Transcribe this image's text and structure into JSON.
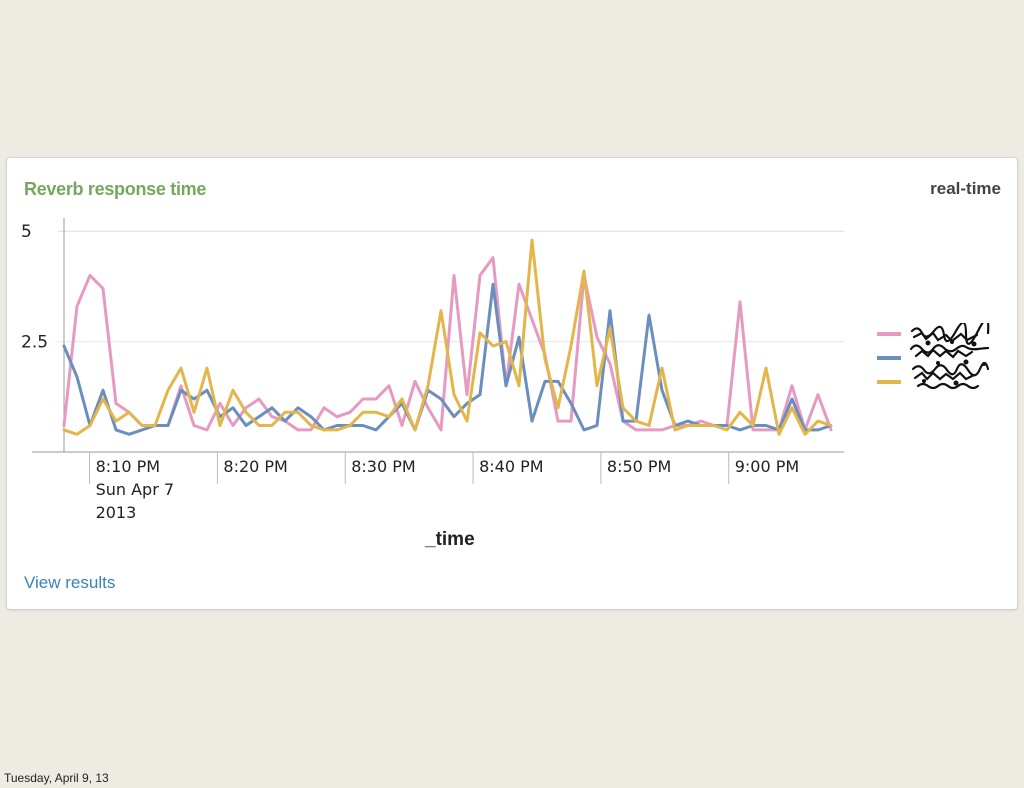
{
  "panel": {
    "title": "Reverb response time",
    "mode_label": "real-time",
    "view_link": "View results"
  },
  "footer": {
    "date": "Tuesday, April 9, 13"
  },
  "colors": {
    "pink": "#e69ac2",
    "blue": "#6a8fbf",
    "gold": "#e2b64a",
    "title_green": "#75a85f",
    "link_blue": "#3b83b5"
  },
  "chart_data": {
    "type": "line",
    "title": "Reverb response time",
    "xlabel": "_time",
    "ylabel": "",
    "ylim": [
      0,
      5.3
    ],
    "y_ticks": [
      2.5,
      5
    ],
    "y_tick_labels": [
      "2.5",
      "5"
    ],
    "x_ticks": [
      "8:10 PM",
      "8:20 PM",
      "8:30 PM",
      "8:40 PM",
      "8:50 PM",
      "9:00 PM"
    ],
    "x_tick_sublabels": [
      "Sun Apr 7",
      "2013"
    ],
    "x_range_minutes": [
      8.0,
      68.0
    ],
    "series": [
      {
        "name": "",
        "color": "#e69ac2",
        "values": [
          0.6,
          3.3,
          4.0,
          3.7,
          1.1,
          0.9,
          0.6,
          0.6,
          0.6,
          1.5,
          0.6,
          0.5,
          1.1,
          0.6,
          1.0,
          1.2,
          0.8,
          0.7,
          0.5,
          0.5,
          1.0,
          0.8,
          0.9,
          1.2,
          1.2,
          1.5,
          0.6,
          1.6,
          1.0,
          0.5,
          4.0,
          1.3,
          4.0,
          4.4,
          1.5,
          3.8,
          3.0,
          2.2,
          0.7,
          0.7,
          4.0,
          2.6,
          2.0,
          0.7,
          0.5,
          0.5,
          0.5,
          0.6,
          0.6,
          0.7,
          0.6,
          0.6,
          3.4,
          0.5,
          0.5,
          0.5,
          1.5,
          0.5,
          1.3,
          0.5
        ]
      },
      {
        "name": "",
        "color": "#6a8fbf",
        "values": [
          2.4,
          1.7,
          0.6,
          1.4,
          0.5,
          0.4,
          0.5,
          0.6,
          0.6,
          1.4,
          1.2,
          1.4,
          0.8,
          1.0,
          0.6,
          0.8,
          1.0,
          0.7,
          1.0,
          0.8,
          0.5,
          0.6,
          0.6,
          0.6,
          0.5,
          0.8,
          1.1,
          0.5,
          1.4,
          1.2,
          0.8,
          1.1,
          1.3,
          3.8,
          1.5,
          2.6,
          0.7,
          1.6,
          1.6,
          1.1,
          0.5,
          0.6,
          3.2,
          0.7,
          0.7,
          3.1,
          1.4,
          0.6,
          0.7,
          0.6,
          0.6,
          0.6,
          0.5,
          0.6,
          0.6,
          0.5,
          1.2,
          0.5,
          0.5,
          0.6
        ]
      },
      {
        "name": "",
        "color": "#e2b64a",
        "values": [
          0.5,
          0.4,
          0.6,
          1.2,
          0.7,
          0.9,
          0.6,
          0.6,
          1.4,
          1.9,
          0.9,
          1.9,
          0.6,
          1.4,
          0.9,
          0.6,
          0.6,
          0.9,
          0.9,
          0.6,
          0.5,
          0.5,
          0.6,
          0.9,
          0.9,
          0.8,
          1.2,
          0.5,
          1.5,
          3.2,
          1.3,
          0.7,
          2.7,
          2.4,
          2.5,
          1.5,
          4.8,
          2.1,
          1.0,
          2.4,
          4.1,
          1.5,
          2.8,
          1.0,
          0.7,
          0.6,
          1.9,
          0.5,
          0.6,
          0.6,
          0.6,
          0.5,
          0.9,
          0.6,
          1.9,
          0.4,
          1.0,
          0.4,
          0.7,
          0.6
        ]
      }
    ]
  }
}
